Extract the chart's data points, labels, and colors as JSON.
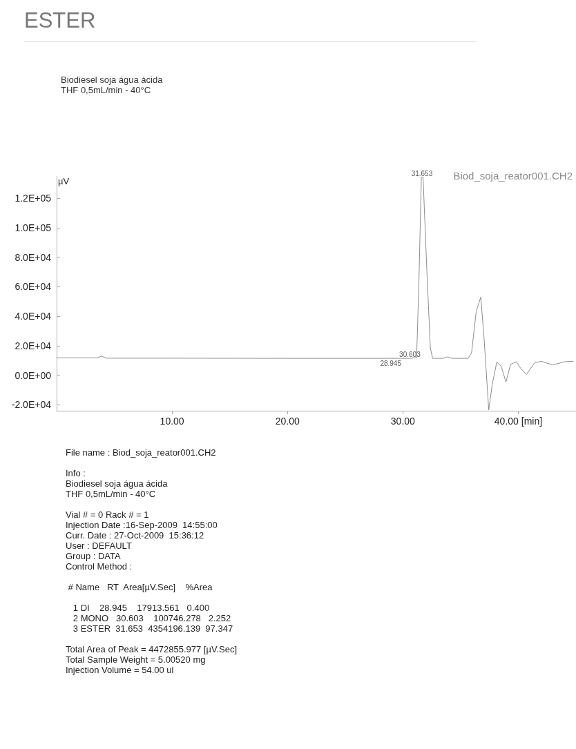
{
  "chart_data": {
    "type": "line",
    "title": "ESTER",
    "subtitle": "Biodiesel soja água ácida\nTHF 0,5mL/min - 40°C",
    "ylabel": "µV",
    "x": [
      0,
      3.5,
      3.9,
      4.3,
      10,
      20,
      28,
      28.945,
      30.6,
      31.19,
      31.39,
      31.6,
      31.75,
      32.08,
      32.38,
      32.58,
      33.47,
      33.87,
      34.27,
      35.65,
      35.95,
      36.35,
      36.75,
      37.04,
      37.44,
      37.74,
      38.14,
      38.53,
      38.93,
      39.33,
      39.82,
      40.22,
      40.71,
      41.41,
      42.0,
      43.0,
      44.0,
      44.76
    ],
    "series": [
      {
        "name": "Biod_soja_reator001.CH2",
        "color": "#8c8c8c",
        "values": [
          11800,
          11800,
          13000,
          11600,
          11600,
          11500,
          11500,
          11500,
          11500,
          12000,
          63000,
          134000,
          134000,
          70700,
          18500,
          11500,
          11500,
          12500,
          11500,
          11500,
          15200,
          43000,
          53000,
          24500,
          -23500,
          -6300,
          9200,
          6000,
          -4600,
          7400,
          9200,
          4600,
          600,
          8500,
          9500,
          7000,
          9200,
          9500
        ]
      }
    ],
    "xlim": [
      0,
      45
    ],
    "xticks": [
      {
        "value": 10,
        "label": "10.00"
      },
      {
        "value": 20,
        "label": "20.00"
      },
      {
        "value": 30,
        "label": "30.00"
      },
      {
        "value": 40,
        "label": "40.00 [min]"
      }
    ],
    "ylim": [
      -24000,
      135000
    ],
    "yticks": [
      {
        "value": -20000,
        "label": "-2.0E+04"
      },
      {
        "value": 0,
        "label": "0.0E+00"
      },
      {
        "value": 20000,
        "label": "2.0E+04"
      },
      {
        "value": 40000,
        "label": "4.0E+04"
      },
      {
        "value": 60000,
        "label": "6.0E+04"
      },
      {
        "value": 80000,
        "label": "8.0E+04"
      },
      {
        "value": 100000,
        "label": "1.0E+05"
      },
      {
        "value": 120000,
        "label": "1.2E+05"
      }
    ],
    "grid": false,
    "legend": "top right",
    "marker": "none",
    "line_style": "solid",
    "annotations": [
      {
        "text": "31.653",
        "x": 31.653,
        "y": 134000
      },
      {
        "text": "30.603",
        "x": 30.603,
        "y": 11500
      },
      {
        "text": "28.945",
        "x": 28.945,
        "y": 11500
      },
      "File name : Biod_soja_reator001.CH2",
      "Info :\nBiodiesel soja água ácida\nTHF 0,5mL/min - 40°C",
      "Vial # = 0 Rack # = 1\nInjection Date :16-Sep-2009  14:55:00\nCurr. Date : 27-Oct-2009  15:36:12\nUser : DEFAULT\nGroup : DATA\nControl Method :",
      " # Name   RT  Area[µV.Sec]    %Area",
      "   1 DI    28.945    17913.561   0.400\n   2 MONO   30.603    100746.278   2.252\n   3 ESTER  31.653  4354196.139  97.347",
      "Total Area of Peak = 4472855.977 [µV.Sec]\nTotal Sample Weight = 5.00520 mg\nInjection Volume = 54.00 ul"
    ]
  }
}
